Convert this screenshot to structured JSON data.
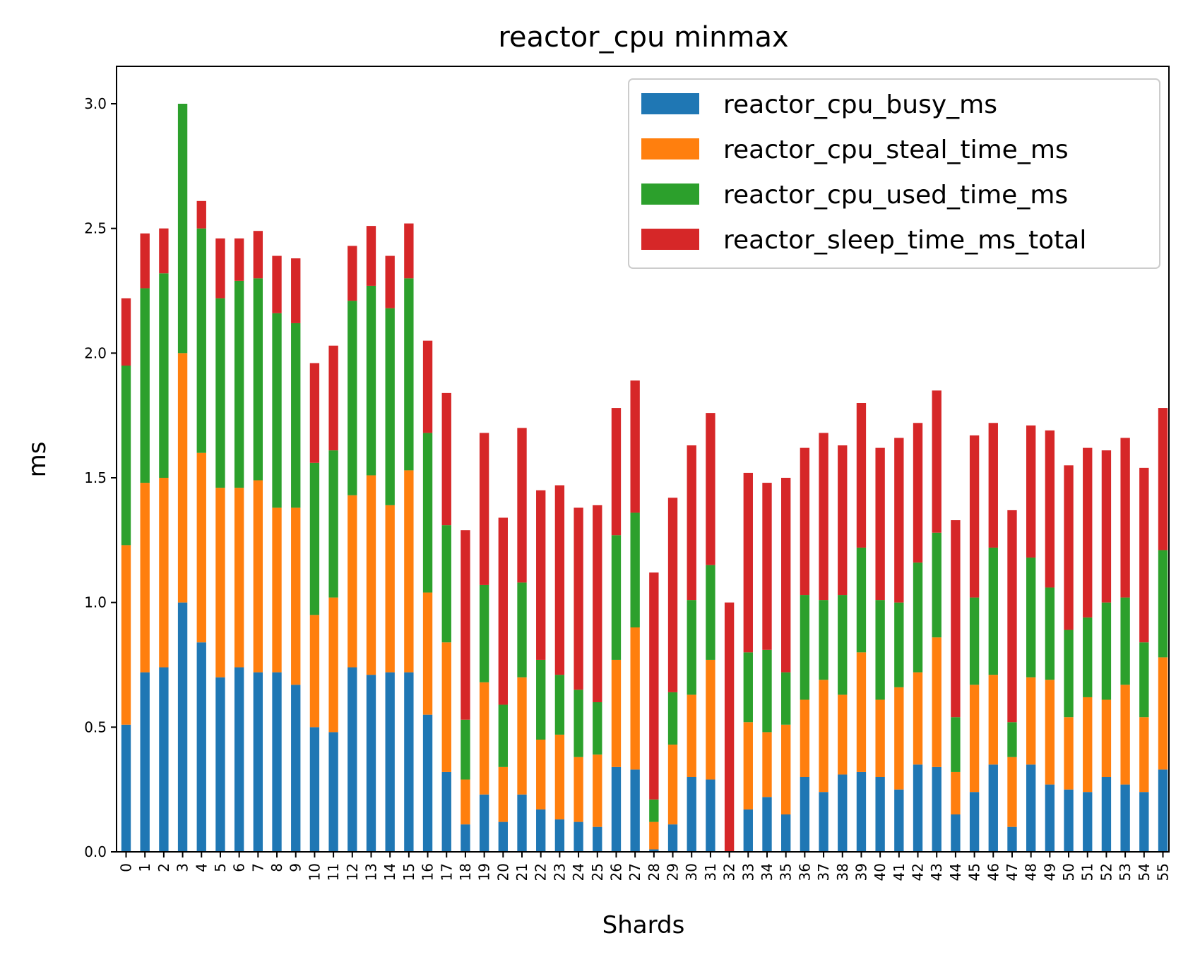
{
  "chart_data": {
    "type": "bar",
    "stacked": true,
    "title": "reactor_cpu minmax",
    "xlabel": "Shards",
    "ylabel": "ms",
    "ylim": [
      0,
      3.15
    ],
    "yticks": [
      "0.0",
      "0.5",
      "1.0",
      "1.5",
      "2.0",
      "2.5",
      "3.0"
    ],
    "legend_position": "top-right",
    "grid": false,
    "categories": [
      "0",
      "1",
      "2",
      "3",
      "4",
      "5",
      "6",
      "7",
      "8",
      "9",
      "10",
      "11",
      "12",
      "13",
      "14",
      "15",
      "16",
      "17",
      "18",
      "19",
      "20",
      "21",
      "22",
      "23",
      "24",
      "25",
      "26",
      "27",
      "28",
      "29",
      "30",
      "31",
      "32",
      "33",
      "34",
      "35",
      "36",
      "37",
      "38",
      "39",
      "40",
      "41",
      "42",
      "43",
      "44",
      "45",
      "46",
      "47",
      "48",
      "49",
      "50",
      "51",
      "52",
      "53",
      "54",
      "55"
    ],
    "series": [
      {
        "name": "reactor_cpu_busy_ms",
        "color": "#1f77b4",
        "values": [
          0.51,
          0.72,
          0.74,
          1.0,
          0.84,
          0.7,
          0.74,
          0.72,
          0.72,
          0.67,
          0.5,
          0.48,
          0.74,
          0.71,
          0.72,
          0.72,
          0.55,
          0.32,
          0.11,
          0.23,
          0.12,
          0.23,
          0.17,
          0.13,
          0.12,
          0.1,
          0.34,
          0.33,
          0.01,
          0.11,
          0.3,
          0.29,
          0.0,
          0.17,
          0.22,
          0.15,
          0.3,
          0.24,
          0.31,
          0.32,
          0.3,
          0.25,
          0.35,
          0.34,
          0.15,
          0.24,
          0.35,
          0.1,
          0.35,
          0.27,
          0.25,
          0.24,
          0.3,
          0.27,
          0.24,
          0.33
        ]
      },
      {
        "name": "reactor_cpu_steal_time_ms",
        "color": "#ff7f0e",
        "values": [
          0.72,
          0.76,
          0.76,
          1.0,
          0.76,
          0.76,
          0.72,
          0.77,
          0.66,
          0.71,
          0.45,
          0.54,
          0.69,
          0.8,
          0.67,
          0.81,
          0.49,
          0.52,
          0.18,
          0.45,
          0.22,
          0.47,
          0.28,
          0.34,
          0.26,
          0.29,
          0.43,
          0.57,
          0.11,
          0.32,
          0.33,
          0.48,
          0.0,
          0.35,
          0.26,
          0.36,
          0.31,
          0.45,
          0.32,
          0.48,
          0.31,
          0.41,
          0.37,
          0.52,
          0.17,
          0.43,
          0.36,
          0.28,
          0.35,
          0.42,
          0.29,
          0.38,
          0.31,
          0.4,
          0.3,
          0.45
        ]
      },
      {
        "name": "reactor_cpu_used_time_ms",
        "color": "#2ca02c",
        "values": [
          0.72,
          0.78,
          0.82,
          1.0,
          0.9,
          0.76,
          0.83,
          0.81,
          0.78,
          0.74,
          0.61,
          0.59,
          0.78,
          0.76,
          0.79,
          0.77,
          0.64,
          0.47,
          0.24,
          0.39,
          0.25,
          0.38,
          0.32,
          0.24,
          0.27,
          0.21,
          0.5,
          0.46,
          0.09,
          0.21,
          0.38,
          0.38,
          0.0,
          0.28,
          0.33,
          0.21,
          0.42,
          0.32,
          0.4,
          0.42,
          0.4,
          0.34,
          0.44,
          0.42,
          0.22,
          0.35,
          0.51,
          0.14,
          0.48,
          0.37,
          0.35,
          0.32,
          0.39,
          0.35,
          0.3,
          0.43
        ]
      },
      {
        "name": "reactor_sleep_time_ms_total",
        "color": "#d62728",
        "values": [
          0.27,
          0.22,
          0.18,
          0.0,
          0.11,
          0.24,
          0.17,
          0.19,
          0.23,
          0.26,
          0.4,
          0.42,
          0.22,
          0.24,
          0.21,
          0.22,
          0.37,
          0.53,
          0.76,
          0.61,
          0.75,
          0.62,
          0.68,
          0.76,
          0.73,
          0.79,
          0.51,
          0.53,
          0.91,
          0.78,
          0.62,
          0.61,
          1.0,
          0.72,
          0.67,
          0.78,
          0.59,
          0.67,
          0.6,
          0.58,
          0.61,
          0.66,
          0.56,
          0.57,
          0.79,
          0.65,
          0.5,
          0.85,
          0.53,
          0.63,
          0.66,
          0.68,
          0.61,
          0.64,
          0.7,
          0.57
        ]
      }
    ]
  }
}
